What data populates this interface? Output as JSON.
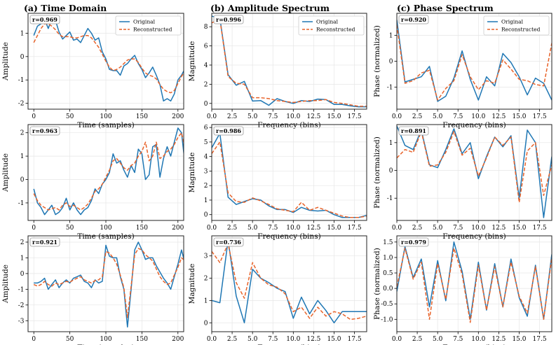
{
  "figure": {
    "col_titles": [
      "(a) Time Domain",
      "(b) Amplitude Spectrum",
      "(c) Phase Spectrum"
    ],
    "series_names": [
      "Original",
      "Reconstructed"
    ],
    "colors": {
      "original": "#1f77b4",
      "reconstructed": "#e8632a",
      "grid": "#e6e6e6",
      "frame": "#222222"
    }
  },
  "chart_data": [
    {
      "id": "time-1",
      "type": "line",
      "col": 0,
      "row": 0,
      "xlabel": "Time (samples)",
      "ylabel": "Amplitude",
      "xlim": [
        -8,
        208
      ],
      "ylim": [
        -2.25,
        1.85
      ],
      "xticks": [
        0,
        50,
        100,
        150,
        200
      ],
      "yticks": [
        -2,
        -1,
        0,
        1
      ],
      "r_label": "r=0.969",
      "legend": true,
      "x_step": 5,
      "series": [
        {
          "name": "Original",
          "values": [
            0.9,
            1.3,
            1.4,
            1.6,
            1.2,
            1.6,
            1.55,
            1.05,
            0.75,
            0.9,
            1.05,
            0.7,
            0.75,
            0.6,
            0.9,
            1.2,
            1.0,
            0.7,
            0.8,
            0.2,
            -0.1,
            -0.55,
            -0.6,
            -0.6,
            -0.8,
            -0.4,
            -0.3,
            -0.1,
            0.05,
            -0.3,
            -0.55,
            -0.9,
            -0.7,
            -0.45,
            -0.8,
            -1.2,
            -1.9,
            -1.8,
            -1.9,
            -1.6,
            -1.0,
            -0.8,
            -0.5,
            -0.4,
            -0.4,
            -0.3,
            -0.2,
            -0.6,
            -0.45,
            -0.5,
            -0.6
          ]
        },
        {
          "name": "Reconstructed",
          "values": [
            0.6,
            0.9,
            1.2,
            1.4,
            1.4,
            1.3,
            1.15,
            0.95,
            0.85,
            0.85,
            0.85,
            0.8,
            0.8,
            0.85,
            0.9,
            0.9,
            0.8,
            0.6,
            0.4,
            0.1,
            -0.2,
            -0.45,
            -0.6,
            -0.55,
            -0.45,
            -0.3,
            -0.15,
            -0.1,
            -0.1,
            -0.25,
            -0.5,
            -0.7,
            -0.8,
            -0.85,
            -0.95,
            -1.2,
            -1.4,
            -1.5,
            -1.55,
            -1.45,
            -1.15,
            -0.85,
            -0.6,
            -0.45,
            -0.4,
            -0.38,
            -0.38,
            -0.42,
            -0.48,
            -0.55,
            -0.6
          ]
        }
      ]
    },
    {
      "id": "amp-1",
      "type": "line",
      "col": 1,
      "row": 0,
      "xlabel": "Frequency (bins)",
      "ylabel": "Magnitude",
      "xlim": [
        0,
        19
      ],
      "ylim": [
        -0.6,
        9.4
      ],
      "xticks": [
        0.0,
        2.5,
        5.0,
        7.5,
        10.0,
        12.5,
        15.0,
        17.5
      ],
      "yticks": [
        0,
        2,
        4,
        6,
        8
      ],
      "r_label": "r=0.996",
      "legend": true,
      "x": [
        0,
        1,
        2,
        3,
        4,
        5,
        6,
        7,
        8,
        9,
        10,
        11,
        12,
        13,
        14,
        15,
        16,
        17,
        18,
        19
      ],
      "series": [
        {
          "name": "Original",
          "values": [
            9.1,
            8.9,
            3.0,
            1.9,
            2.3,
            0.25,
            0.3,
            -0.2,
            0.5,
            0.2,
            0.0,
            0.3,
            0.2,
            0.45,
            0.4,
            -0.1,
            -0.1,
            -0.25,
            -0.35,
            -0.35
          ]
        },
        {
          "name": "Reconstructed",
          "values": [
            8.4,
            8.8,
            2.8,
            2.1,
            2.0,
            0.6,
            0.6,
            0.5,
            0.3,
            0.2,
            0.1,
            0.2,
            0.3,
            0.3,
            0.4,
            0.1,
            0.0,
            -0.15,
            -0.3,
            -0.3
          ]
        }
      ]
    },
    {
      "id": "phase-1",
      "type": "line",
      "col": 2,
      "row": 0,
      "xlabel": "Frequency (bins)",
      "ylabel": "Phase (normalized)",
      "xlim": [
        0,
        19
      ],
      "ylim": [
        -1.85,
        1.85
      ],
      "xticks": [
        0.0,
        2.5,
        5.0,
        7.5,
        10.0,
        12.5,
        15.0,
        17.5
      ],
      "yticks": [
        -1,
        0,
        1
      ],
      "r_label": "r=0.920",
      "legend": true,
      "x": [
        0,
        1,
        2,
        3,
        4,
        5,
        6,
        7,
        8,
        9,
        10,
        11,
        12,
        13,
        14,
        15,
        16,
        17,
        18,
        19
      ],
      "series": [
        {
          "name": "Original",
          "values": [
            1.6,
            -0.8,
            -0.7,
            -0.6,
            -0.2,
            -1.55,
            -1.35,
            -0.65,
            0.4,
            -0.7,
            -1.5,
            -0.6,
            -0.95,
            0.3,
            -0.05,
            -0.6,
            -1.3,
            -0.65,
            -0.85,
            -1.5
          ]
        },
        {
          "name": "Reconstructed",
          "values": [
            1.4,
            -0.85,
            -0.75,
            -0.45,
            -0.35,
            -1.5,
            -1.05,
            -0.75,
            0.25,
            -0.6,
            -1.1,
            -0.75,
            -0.85,
            0.05,
            -0.3,
            -0.7,
            -0.75,
            -0.9,
            -0.95,
            0.7
          ]
        }
      ]
    },
    {
      "id": "time-2",
      "type": "line",
      "col": 0,
      "row": 1,
      "xlabel": "Time (samples)",
      "ylabel": "Amplitude",
      "xlim": [
        -8,
        208
      ],
      "ylim": [
        -1.75,
        2.35
      ],
      "xticks": [
        0,
        50,
        100,
        150,
        200
      ],
      "yticks": [
        -1,
        0,
        1,
        2
      ],
      "r_label": "r=0.963",
      "legend": false,
      "x_step": 5,
      "series": [
        {
          "name": "Original",
          "values": [
            -0.4,
            -1.0,
            -1.2,
            -1.5,
            -1.3,
            -1.1,
            -1.5,
            -1.4,
            -1.2,
            -0.8,
            -1.3,
            -1.0,
            -1.3,
            -1.5,
            -1.3,
            -1.2,
            -0.9,
            -0.4,
            -0.6,
            -0.2,
            0.0,
            0.3,
            1.1,
            0.7,
            0.8,
            0.4,
            0.1,
            0.6,
            0.3,
            1.3,
            1.1,
            0.0,
            0.2,
            1.4,
            1.5,
            0.1,
            0.9,
            1.4,
            1.0,
            1.6,
            2.2,
            2.0,
            0.6,
            0.9,
            1.1,
            -0.2,
            0.4,
            1.3,
            1.1,
            1.4,
            1.0
          ]
        },
        {
          "name": "Reconstructed",
          "values": [
            -0.6,
            -0.9,
            -1.1,
            -1.2,
            -1.3,
            -1.25,
            -1.2,
            -1.3,
            -1.1,
            -1.0,
            -1.15,
            -1.1,
            -1.2,
            -1.3,
            -1.2,
            -1.05,
            -0.8,
            -0.5,
            -0.4,
            -0.2,
            0.1,
            0.4,
            0.8,
            0.9,
            0.7,
            0.5,
            0.4,
            0.6,
            0.7,
            1.0,
            1.2,
            1.6,
            0.8,
            1.0,
            1.6,
            0.9,
            1.0,
            1.2,
            1.3,
            1.5,
            1.8,
            2.0,
            1.3,
            1.0,
            0.9,
            0.4,
            0.6,
            1.1,
            1.2,
            1.5,
            1.4
          ]
        }
      ]
    },
    {
      "id": "amp-2",
      "type": "line",
      "col": 1,
      "row": 1,
      "xlabel": "Frequency (bins)",
      "ylabel": "Magnitude",
      "xlim": [
        0,
        19
      ],
      "ylim": [
        -0.4,
        6.2
      ],
      "xticks": [
        0.0,
        2.5,
        5.0,
        7.5,
        10.0,
        12.5,
        15.0,
        17.5
      ],
      "yticks": [
        0,
        1,
        2,
        3,
        4,
        5,
        6
      ],
      "r_label": "r=0.986",
      "legend": false,
      "x": [
        0,
        1,
        2,
        3,
        4,
        5,
        6,
        7,
        8,
        9,
        10,
        11,
        12,
        13,
        14,
        15,
        16,
        17,
        18,
        19
      ],
      "series": [
        {
          "name": "Original",
          "values": [
            4.6,
            5.6,
            1.2,
            0.7,
            0.9,
            1.1,
            1.0,
            0.6,
            0.35,
            0.35,
            0.15,
            0.5,
            0.3,
            0.25,
            0.3,
            0.0,
            -0.2,
            -0.2,
            -0.2,
            -0.05
          ]
        },
        {
          "name": "Reconstructed",
          "values": [
            4.2,
            5.0,
            1.5,
            0.9,
            0.85,
            1.15,
            0.95,
            0.7,
            0.4,
            0.3,
            0.2,
            0.85,
            0.3,
            0.5,
            0.3,
            0.1,
            -0.1,
            -0.2,
            -0.2,
            -0.1
          ]
        }
      ]
    },
    {
      "id": "phase-2",
      "type": "line",
      "col": 2,
      "row": 1,
      "xlabel": "Frequency (bins)",
      "ylabel": "Phase (normalized)",
      "xlim": [
        0,
        19
      ],
      "ylim": [
        -1.8,
        1.65
      ],
      "xticks": [
        0.0,
        2.5,
        5.0,
        7.5,
        10.0,
        12.5,
        15.0,
        17.5
      ],
      "yticks": [
        -1,
        0,
        1
      ],
      "r_label": "r=0.891",
      "legend": false,
      "x": [
        0,
        1,
        2,
        3,
        4,
        5,
        6,
        7,
        8,
        9,
        10,
        11,
        12,
        13,
        14,
        15,
        16,
        17,
        18,
        19
      ],
      "series": [
        {
          "name": "Original",
          "values": [
            1.6,
            0.9,
            0.75,
            1.45,
            0.2,
            0.1,
            0.75,
            1.5,
            0.6,
            1.0,
            -0.3,
            0.5,
            1.2,
            0.85,
            1.25,
            -1.0,
            1.45,
            1.0,
            -1.7,
            0.5
          ]
        },
        {
          "name": "Reconstructed",
          "values": [
            0.45,
            0.75,
            0.65,
            1.4,
            0.15,
            0.2,
            0.65,
            1.4,
            0.55,
            0.8,
            -0.2,
            0.45,
            1.2,
            0.9,
            1.2,
            -1.15,
            0.7,
            1.0,
            -0.9,
            0.2
          ]
        }
      ]
    },
    {
      "id": "time-3",
      "type": "line",
      "col": 0,
      "row": 2,
      "xlabel": "Time (samples)",
      "ylabel": "Amplitude",
      "xlim": [
        -8,
        208
      ],
      "ylim": [
        -3.7,
        2.4
      ],
      "xticks": [
        0,
        50,
        100,
        150,
        200
      ],
      "yticks": [
        -3,
        -2,
        -1,
        0,
        1,
        2
      ],
      "r_label": "r=0.921",
      "legend": false,
      "x_step": 5,
      "series": [
        {
          "name": "Original",
          "values": [
            -0.6,
            -0.6,
            -0.5,
            -0.3,
            -1.0,
            -0.7,
            -0.4,
            -0.9,
            -0.6,
            -0.4,
            -0.6,
            -0.3,
            -0.2,
            -0.1,
            -0.5,
            -0.6,
            -0.9,
            -0.4,
            -0.6,
            -0.5,
            1.8,
            1.1,
            1.0,
            1.0,
            -0.2,
            -1.0,
            -3.4,
            -1.0,
            1.5,
            2.0,
            1.5,
            0.9,
            1.0,
            1.0,
            0.5,
            0.1,
            -0.3,
            -0.6,
            -1.0,
            -0.2,
            0.6,
            1.5,
            0.6,
            -0.2,
            0.2,
            1.2,
            0.9,
            1.1,
            0.8,
            1.4,
            1.5
          ]
        },
        {
          "name": "Reconstructed",
          "values": [
            -0.7,
            -0.8,
            -0.7,
            -0.5,
            -0.7,
            -0.8,
            -0.6,
            -0.7,
            -0.6,
            -0.5,
            -0.55,
            -0.4,
            -0.3,
            -0.2,
            -0.4,
            -0.5,
            -0.6,
            -0.45,
            -0.4,
            -0.2,
            1.4,
            1.3,
            1.0,
            0.6,
            -0.1,
            -0.9,
            -2.8,
            -0.8,
            1.2,
            1.6,
            1.5,
            1.2,
            1.0,
            0.8,
            0.3,
            -0.2,
            -0.5,
            -0.7,
            -0.6,
            -0.1,
            0.4,
            1.0,
            0.8,
            0.3,
            0.5,
            0.8,
            0.9,
            1.0,
            0.9,
            1.1,
            1.2
          ]
        }
      ]
    },
    {
      "id": "amp-3",
      "type": "line",
      "col": 1,
      "row": 2,
      "xlabel": "Frequency (bins)",
      "ylabel": "Magnitude",
      "xlim": [
        0,
        19
      ],
      "ylim": [
        -0.4,
        3.9
      ],
      "xticks": [
        0.0,
        2.5,
        5.0,
        7.5,
        10.0,
        12.5,
        15.0,
        17.5
      ],
      "yticks": [
        0,
        1,
        2,
        3
      ],
      "r_label": "r=0.736",
      "legend": false,
      "x": [
        0,
        1,
        2,
        3,
        4,
        5,
        6,
        7,
        8,
        9,
        10,
        11,
        12,
        13,
        14,
        15,
        16,
        17,
        18,
        19
      ],
      "series": [
        {
          "name": "Original",
          "values": [
            1.0,
            0.9,
            3.7,
            1.2,
            0.0,
            2.4,
            2.0,
            1.8,
            1.55,
            1.4,
            0.2,
            1.15,
            0.4,
            1.0,
            0.55,
            0.0,
            0.5,
            0.5,
            0.5,
            0.5
          ]
        },
        {
          "name": "Reconstructed",
          "values": [
            3.2,
            2.7,
            3.55,
            1.8,
            1.1,
            2.7,
            2.0,
            1.7,
            1.6,
            1.3,
            0.5,
            0.7,
            0.2,
            0.7,
            0.3,
            0.5,
            0.4,
            0.15,
            0.2,
            0.3
          ]
        }
      ]
    },
    {
      "id": "phase-3",
      "type": "line",
      "col": 2,
      "row": 2,
      "xlabel": "Frequency (bins)",
      "ylabel": "Phase (normalized)",
      "xlim": [
        0,
        19
      ],
      "ylim": [
        -1.4,
        1.7
      ],
      "xticks": [
        0.0,
        2.5,
        5.0,
        7.5,
        10.0,
        12.5,
        15.0,
        17.5
      ],
      "yticks": [
        -1.0,
        -0.5,
        0.0,
        0.5,
        1.0,
        1.5
      ],
      "r_label": "r=0.979",
      "legend": false,
      "x": [
        0,
        1,
        2,
        3,
        4,
        5,
        6,
        7,
        8,
        9,
        10,
        11,
        12,
        13,
        14,
        15,
        16,
        17,
        18,
        19
      ],
      "series": [
        {
          "name": "Original",
          "values": [
            -0.1,
            1.35,
            0.35,
            0.95,
            -0.6,
            0.9,
            -0.4,
            1.5,
            0.55,
            -1.0,
            0.85,
            -0.7,
            0.8,
            -0.6,
            0.95,
            -0.3,
            -0.9,
            0.75,
            -1.0,
            1.1
          ]
        },
        {
          "name": "Reconstructed",
          "values": [
            0.05,
            1.3,
            0.3,
            0.85,
            -1.0,
            0.8,
            -0.35,
            1.3,
            0.45,
            -1.1,
            0.75,
            -0.7,
            0.7,
            -0.6,
            0.85,
            -0.25,
            -0.8,
            0.7,
            -1.0,
            1.0
          ]
        }
      ]
    }
  ]
}
